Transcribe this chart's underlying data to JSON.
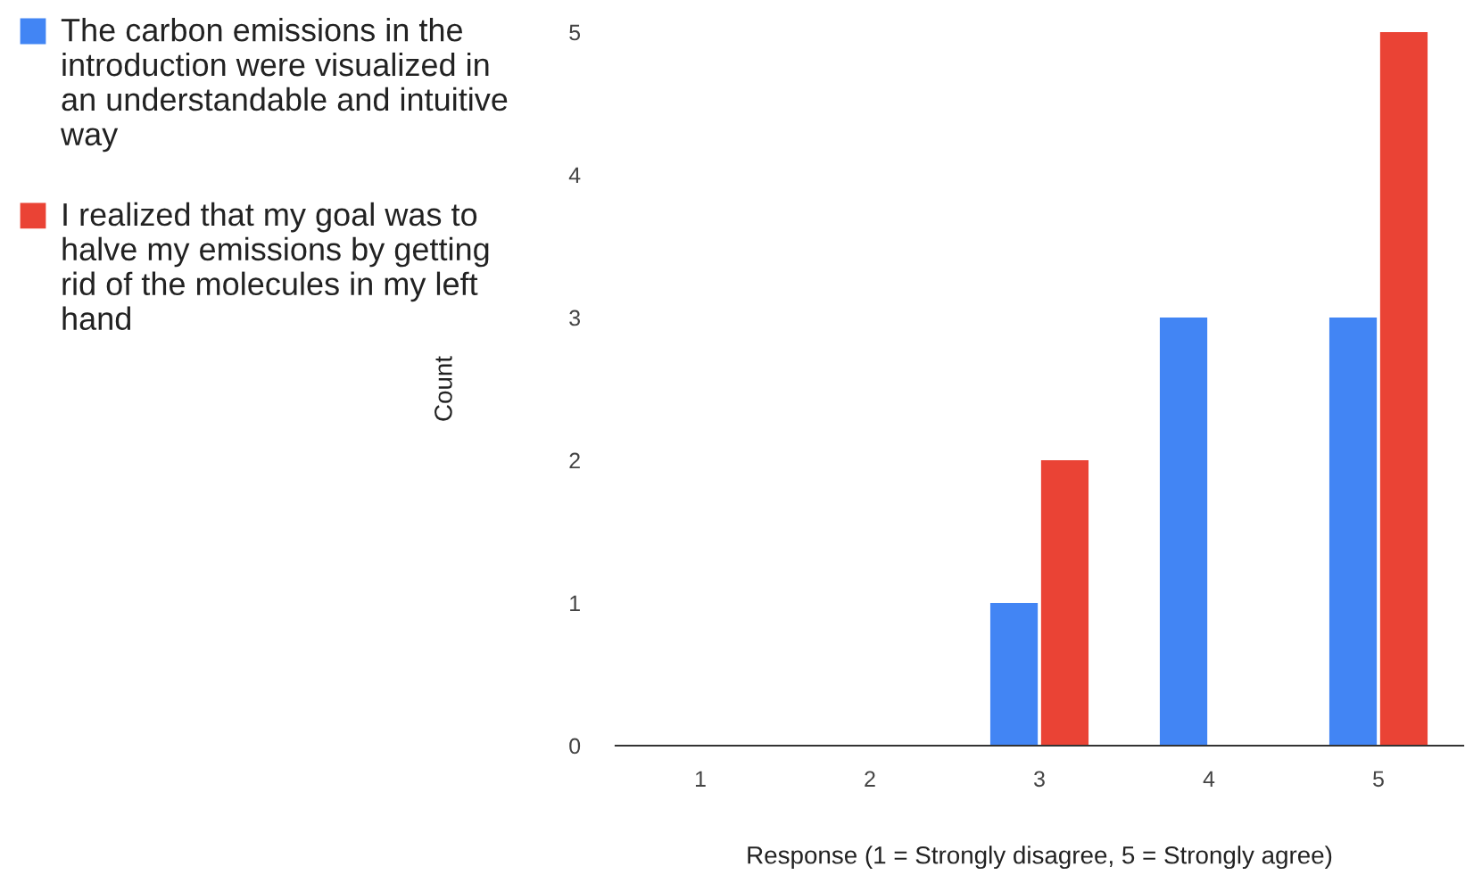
{
  "chart_data": {
    "type": "bar",
    "xlabel": "Response (1 = Strongly disagree, 5 = Strongly agree)",
    "ylabel": "Count",
    "categories": [
      "1",
      "2",
      "3",
      "4",
      "5"
    ],
    "series": [
      {
        "name": "The carbon emissions in the introduction were visualized in an understandable and intuitive way",
        "color": "#4285f4",
        "values": [
          0,
          0,
          1,
          3,
          3
        ]
      },
      {
        "name": "I realized that my goal was to halve my emissions by getting rid of the molecules in my left hand",
        "color": "#ea4335",
        "values": [
          0,
          0,
          2,
          0,
          5
        ]
      }
    ],
    "ylim": [
      0,
      5
    ],
    "yticks": [
      0,
      1,
      2,
      3,
      4,
      5
    ],
    "grid": false,
    "legend": "left"
  }
}
